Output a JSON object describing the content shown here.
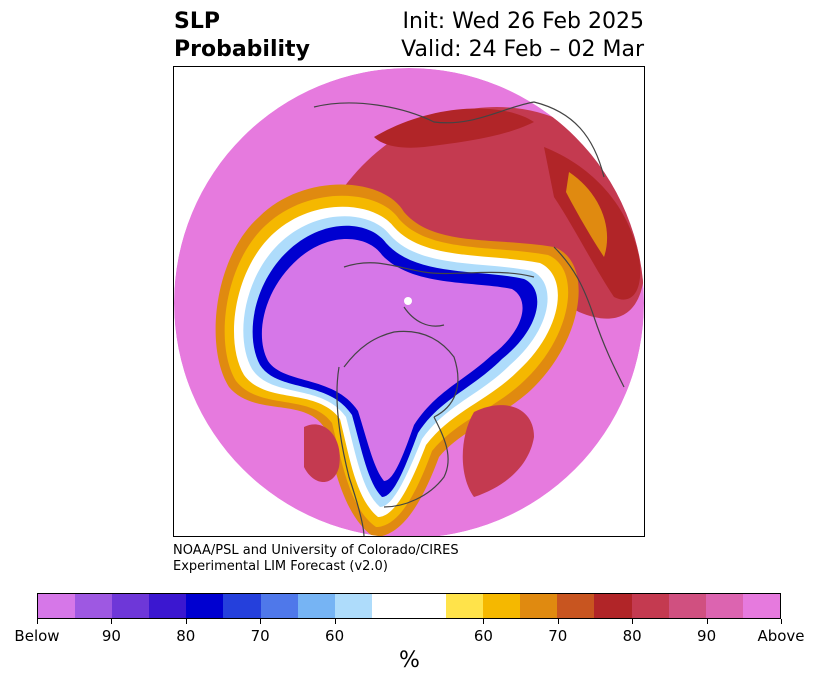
{
  "title": {
    "left_line1": "SLP",
    "left_line2": "Probability",
    "right_line1": "Init: Wed 26 Feb 2025",
    "right_line2": "Valid: 24 Feb – 02 Mar"
  },
  "credit": {
    "line1": "NOAA/PSL and University of Colorado/CIRES",
    "line2": "Experimental LIM Forecast (v2.0)"
  },
  "colorbar": {
    "colors": [
      "#d677e8",
      "#9e58e2",
      "#6e37d8",
      "#3b17d0",
      "#0000d0",
      "#2540dc",
      "#4f78ea",
      "#76b4f4",
      "#aedcfb",
      "#ffffff",
      "#ffffff",
      "#ffe34a",
      "#f5b800",
      "#e08a10",
      "#c85520",
      "#b12528",
      "#c43a50",
      "#d05080",
      "#dc64b0",
      "#e67ade"
    ],
    "tick_labels": [
      "Below",
      "90",
      "80",
      "70",
      "60",
      "60",
      "70",
      "80",
      "90",
      "Above"
    ],
    "units": "%"
  },
  "map": {
    "palette": {
      "magenta_light": "#e67ade",
      "magenta": "#dc64b0",
      "red": "#b12528",
      "orange": "#e08a10",
      "yellow": "#f5b800",
      "purple": "#d677e8",
      "blue": "#0000d0",
      "light_blue": "#aedcfb",
      "coast": "#444444"
    }
  }
}
